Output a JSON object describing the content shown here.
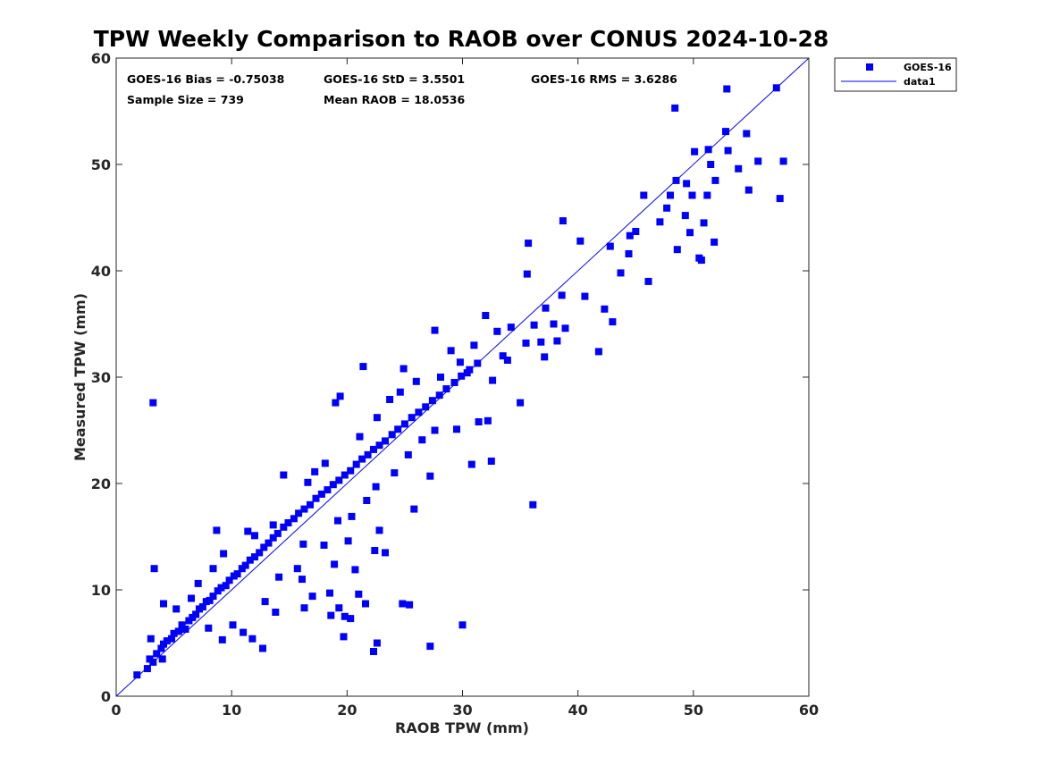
{
  "chart_data": {
    "type": "scatter",
    "title": "TPW Weekly Comparison to RAOB over CONUS 2024-10-28",
    "xlabel": "RAOB TPW (mm)",
    "ylabel": "Measured TPW (mm)",
    "xlim": [
      0,
      60
    ],
    "ylim": [
      0,
      60
    ],
    "xticks": [
      0,
      10,
      20,
      30,
      40,
      50,
      60
    ],
    "yticks": [
      0,
      10,
      20,
      30,
      40,
      50,
      60
    ],
    "grid": false,
    "legend_position": "outside-top-right",
    "stats": {
      "bias": "GOES-16 Bias = -0.75038",
      "std": "GOES-16 StD = 3.5501",
      "rms": "GOES-16 RMS = 3.6286",
      "sample": "Sample Size = 739",
      "mean": "Mean RAOB = 18.0536"
    },
    "series": [
      {
        "name": "GOES-16",
        "kind": "scatter",
        "marker": "square",
        "color": "#0000ff",
        "outlier_points": [
          [
            3.2,
            27.6
          ],
          [
            3.3,
            12.0
          ],
          [
            4.1,
            8.7
          ],
          [
            8.7,
            15.6
          ],
          [
            14.5,
            20.8
          ],
          [
            19.0,
            27.6
          ],
          [
            19.4,
            28.2
          ],
          [
            21.4,
            31.0
          ],
          [
            24.9,
            30.8
          ],
          [
            27.6,
            34.4
          ],
          [
            27.2,
            20.7
          ],
          [
            25.8,
            17.6
          ],
          [
            16.3,
            8.3
          ],
          [
            17.0,
            9.4
          ],
          [
            18.5,
            9.7
          ],
          [
            18.6,
            7.6
          ],
          [
            19.3,
            8.3
          ],
          [
            19.8,
            7.5
          ],
          [
            20.3,
            7.3
          ],
          [
            20.7,
            11.9
          ],
          [
            21.0,
            9.6
          ],
          [
            19.7,
            5.6
          ],
          [
            22.3,
            4.2
          ],
          [
            22.6,
            5.0
          ],
          [
            21.6,
            8.7
          ],
          [
            23.3,
            13.5
          ],
          [
            24.8,
            8.7
          ],
          [
            25.4,
            8.6
          ],
          [
            27.2,
            4.7
          ],
          [
            30.0,
            6.7
          ],
          [
            22.8,
            15.6
          ],
          [
            22.4,
            13.7
          ],
          [
            20.1,
            14.6
          ],
          [
            16.2,
            14.3
          ],
          [
            18.9,
            12.4
          ],
          [
            30.8,
            21.8
          ],
          [
            32.5,
            22.1
          ],
          [
            35.0,
            27.6
          ],
          [
            36.1,
            18.0
          ],
          [
            35.6,
            39.7
          ],
          [
            35.7,
            42.6
          ],
          [
            38.7,
            44.7
          ],
          [
            40.2,
            42.8
          ],
          [
            40.6,
            37.6
          ],
          [
            38.6,
            37.7
          ],
          [
            37.2,
            36.5
          ],
          [
            41.8,
            32.4
          ],
          [
            42.3,
            36.4
          ],
          [
            43.0,
            35.2
          ],
          [
            42.8,
            42.3
          ],
          [
            43.7,
            39.8
          ],
          [
            44.4,
            41.6
          ],
          [
            44.5,
            43.3
          ],
          [
            45.0,
            43.7
          ],
          [
            45.7,
            47.1
          ],
          [
            46.1,
            39.0
          ],
          [
            47.1,
            44.6
          ],
          [
            47.7,
            45.9
          ],
          [
            48.0,
            47.1
          ],
          [
            48.4,
            55.3
          ],
          [
            48.5,
            48.5
          ],
          [
            48.6,
            42.0
          ],
          [
            49.3,
            45.2
          ],
          [
            49.4,
            48.2
          ],
          [
            49.7,
            43.6
          ],
          [
            49.9,
            47.1
          ],
          [
            50.1,
            51.2
          ],
          [
            50.5,
            41.2
          ],
          [
            50.7,
            41.0
          ],
          [
            50.9,
            44.5
          ],
          [
            51.2,
            47.1
          ],
          [
            51.3,
            51.4
          ],
          [
            51.5,
            50.0
          ],
          [
            51.8,
            42.7
          ],
          [
            51.9,
            48.5
          ],
          [
            52.8,
            53.1
          ],
          [
            52.9,
            57.1
          ],
          [
            53.0,
            51.3
          ],
          [
            53.9,
            49.6
          ],
          [
            54.6,
            52.9
          ],
          [
            54.8,
            47.6
          ],
          [
            55.6,
            50.3
          ],
          [
            57.2,
            57.2
          ],
          [
            57.5,
            46.8
          ],
          [
            57.8,
            50.3
          ],
          [
            32.0,
            35.8
          ],
          [
            33.5,
            32.0
          ],
          [
            34.2,
            34.7
          ],
          [
            35.5,
            33.2
          ],
          [
            36.8,
            33.3
          ],
          [
            37.1,
            31.9
          ],
          [
            38.2,
            33.4
          ],
          [
            38.9,
            34.6
          ],
          [
            37.9,
            35.0
          ],
          [
            36.2,
            34.9
          ],
          [
            33.0,
            34.3
          ],
          [
            31.0,
            33.0
          ],
          [
            29.0,
            32.5
          ],
          [
            30.4,
            30.4
          ],
          [
            29.5,
            25.1
          ],
          [
            31.4,
            25.8
          ],
          [
            32.2,
            25.9
          ],
          [
            33.9,
            31.6
          ],
          [
            32.6,
            29.7
          ]
        ],
        "cluster_points": [
          [
            1.8,
            2.0
          ],
          [
            2.7,
            2.6
          ],
          [
            2.9,
            3.5
          ],
          [
            3.2,
            3.2
          ],
          [
            3.5,
            4.0
          ],
          [
            3.9,
            4.5
          ],
          [
            4.1,
            4.9
          ],
          [
            4.4,
            5.2
          ],
          [
            4.8,
            5.4
          ],
          [
            5.0,
            5.9
          ],
          [
            5.4,
            6.1
          ],
          [
            5.7,
            6.7
          ],
          [
            6.0,
            6.3
          ],
          [
            6.3,
            7.1
          ],
          [
            6.6,
            7.4
          ],
          [
            6.9,
            7.7
          ],
          [
            7.2,
            8.2
          ],
          [
            7.5,
            8.4
          ],
          [
            7.8,
            8.9
          ],
          [
            8.1,
            9.0
          ],
          [
            8.4,
            9.4
          ],
          [
            8.8,
            9.9
          ],
          [
            9.1,
            10.2
          ],
          [
            9.5,
            10.4
          ],
          [
            9.8,
            10.9
          ],
          [
            10.2,
            11.3
          ],
          [
            10.5,
            11.5
          ],
          [
            10.9,
            12.0
          ],
          [
            11.2,
            12.3
          ],
          [
            11.6,
            12.8
          ],
          [
            12.0,
            13.1
          ],
          [
            12.4,
            13.5
          ],
          [
            12.8,
            14.0
          ],
          [
            13.2,
            14.4
          ],
          [
            13.6,
            14.9
          ],
          [
            14.0,
            15.3
          ],
          [
            14.5,
            15.9
          ],
          [
            14.9,
            16.3
          ],
          [
            15.4,
            16.7
          ],
          [
            15.8,
            17.2
          ],
          [
            16.3,
            17.6
          ],
          [
            16.8,
            18.0
          ],
          [
            17.3,
            18.6
          ],
          [
            17.8,
            19.0
          ],
          [
            18.3,
            19.4
          ],
          [
            18.8,
            19.9
          ],
          [
            19.3,
            20.3
          ],
          [
            19.8,
            20.8
          ],
          [
            20.3,
            21.2
          ],
          [
            20.8,
            21.8
          ],
          [
            21.3,
            22.3
          ],
          [
            21.8,
            22.7
          ],
          [
            22.3,
            23.2
          ],
          [
            22.8,
            23.6
          ],
          [
            23.3,
            24.0
          ],
          [
            23.9,
            24.6
          ],
          [
            24.4,
            25.1
          ],
          [
            25.0,
            25.6
          ],
          [
            25.6,
            26.2
          ],
          [
            26.2,
            26.7
          ],
          [
            26.8,
            27.2
          ],
          [
            27.4,
            27.8
          ],
          [
            28.0,
            28.3
          ],
          [
            28.6,
            28.9
          ],
          [
            29.3,
            29.5
          ],
          [
            29.9,
            30.1
          ],
          [
            30.6,
            30.7
          ],
          [
            31.3,
            31.3
          ],
          [
            3.0,
            5.4
          ],
          [
            4.0,
            3.5
          ],
          [
            5.2,
            8.2
          ],
          [
            6.5,
            9.2
          ],
          [
            7.1,
            10.6
          ],
          [
            8.4,
            12.0
          ],
          [
            9.3,
            13.4
          ],
          [
            11.4,
            15.5
          ],
          [
            12.0,
            15.1
          ],
          [
            13.6,
            16.1
          ],
          [
            16.6,
            20.1
          ],
          [
            17.2,
            21.1
          ],
          [
            18.1,
            21.9
          ],
          [
            21.1,
            24.4
          ],
          [
            22.6,
            26.2
          ],
          [
            23.7,
            27.9
          ],
          [
            24.6,
            28.6
          ],
          [
            26.0,
            29.6
          ],
          [
            28.1,
            30.0
          ],
          [
            29.8,
            31.4
          ],
          [
            8.0,
            6.4
          ],
          [
            9.2,
            5.3
          ],
          [
            10.1,
            6.7
          ],
          [
            11.0,
            6.0
          ],
          [
            11.8,
            5.4
          ],
          [
            12.7,
            4.5
          ],
          [
            12.9,
            8.9
          ],
          [
            13.8,
            7.9
          ],
          [
            14.1,
            11.2
          ],
          [
            15.7,
            12.0
          ],
          [
            16.1,
            11.0
          ],
          [
            18.0,
            14.2
          ],
          [
            19.2,
            16.5
          ],
          [
            20.4,
            16.9
          ],
          [
            21.7,
            18.4
          ],
          [
            22.5,
            19.7
          ],
          [
            24.1,
            21.0
          ],
          [
            25.3,
            22.7
          ],
          [
            26.5,
            24.1
          ],
          [
            27.6,
            25.0
          ]
        ]
      },
      {
        "name": "data1",
        "kind": "line",
        "color": "#0000ff",
        "x": [
          0,
          60
        ],
        "y": [
          0,
          60
        ]
      }
    ]
  }
}
